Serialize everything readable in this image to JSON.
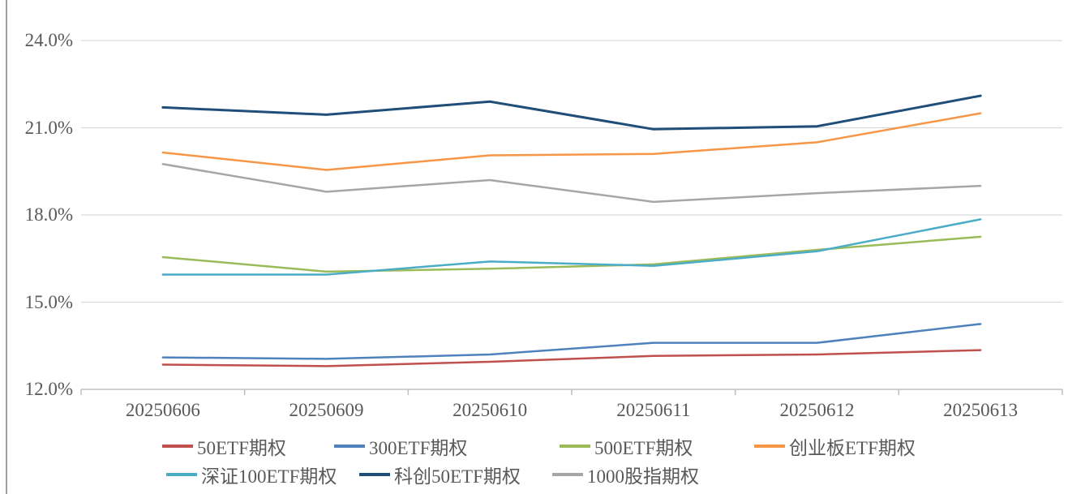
{
  "chart_data": {
    "type": "line",
    "categories": [
      "20250606",
      "20250609",
      "20250610",
      "20250611",
      "20250612",
      "20250613"
    ],
    "series": [
      {
        "name": "50ETF期权",
        "color": "#C0504D",
        "values": [
          12.85,
          12.8,
          12.95,
          13.15,
          13.2,
          13.35
        ]
      },
      {
        "name": "300ETF期权",
        "color": "#4F81BD",
        "values": [
          13.1,
          13.05,
          13.2,
          13.6,
          13.6,
          14.25
        ]
      },
      {
        "name": "500ETF期权",
        "color": "#9BBB59",
        "values": [
          16.55,
          16.05,
          16.15,
          16.3,
          16.8,
          17.25
        ]
      },
      {
        "name": "创业板ETF期权",
        "color": "#F79646",
        "values": [
          20.15,
          19.55,
          20.05,
          20.1,
          20.5,
          21.5
        ]
      },
      {
        "name": "深证100ETF期权",
        "color": "#4BACC6",
        "values": [
          15.95,
          15.95,
          16.4,
          16.25,
          16.75,
          17.85
        ]
      },
      {
        "name": "科创50ETF期权",
        "color": "#1F4E79",
        "values": [
          21.7,
          21.45,
          21.9,
          20.95,
          21.05,
          22.1
        ]
      },
      {
        "name": "1000股指期权",
        "color": "#A6A6A6",
        "values": [
          19.75,
          18.8,
          19.2,
          18.45,
          18.75,
          19.0
        ]
      }
    ],
    "y_ticks": [
      {
        "label": "24.0%",
        "value": 24
      },
      {
        "label": "21.0%",
        "value": 21
      },
      {
        "label": "18.0%",
        "value": 18
      },
      {
        "label": "15.0%",
        "value": 15
      },
      {
        "label": "12.0%",
        "value": 12
      }
    ],
    "ylim": [
      12,
      25
    ],
    "xlabel": "",
    "ylabel": "",
    "grid": true,
    "legend_position": "bottom",
    "legend_rows": [
      [
        "50ETF期权",
        "300ETF期权",
        "500ETF期权",
        "创业板ETF期权"
      ],
      [
        "深证100ETF期权",
        "科创50ETF期权",
        "1000股指期权"
      ]
    ]
  },
  "colors": {
    "background": "#FFFFFF",
    "gridline": "#D9D9D9",
    "axis_line": "#BFBFBF",
    "left_border": "#9E9E9E",
    "tick_text": "#595959",
    "legend_text": "#595959"
  }
}
